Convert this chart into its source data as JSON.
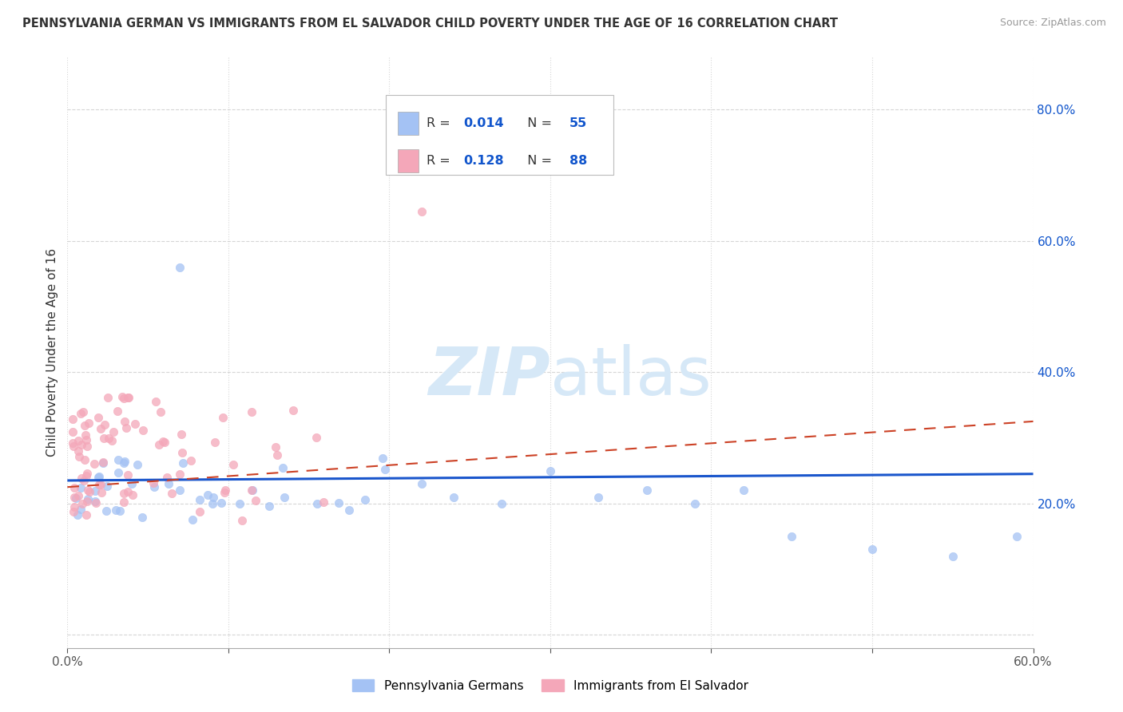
{
  "title": "PENNSYLVANIA GERMAN VS IMMIGRANTS FROM EL SALVADOR CHILD POVERTY UNDER THE AGE OF 16 CORRELATION CHART",
  "source": "Source: ZipAtlas.com",
  "ylabel": "Child Poverty Under the Age of 16",
  "xlim": [
    0.0,
    0.6
  ],
  "ylim": [
    -0.02,
    0.88
  ],
  "color_blue": "#a4c2f4",
  "color_pink": "#f4a7b9",
  "color_blue_dark": "#1155cc",
  "line_blue": "#1a56cc",
  "line_pink": "#cc4125",
  "watermark_color": "#d6e8f7",
  "legend_label1": "Pennsylvania Germans",
  "legend_label2": "Immigrants from El Salvador",
  "grid_color": "#cccccc",
  "background_color": "#ffffff",
  "blue_trend_x": [
    0.0,
    0.6
  ],
  "blue_trend_y": [
    0.235,
    0.245
  ],
  "pink_trend_x": [
    0.0,
    0.6
  ],
  "pink_trend_y": [
    0.225,
    0.325
  ]
}
